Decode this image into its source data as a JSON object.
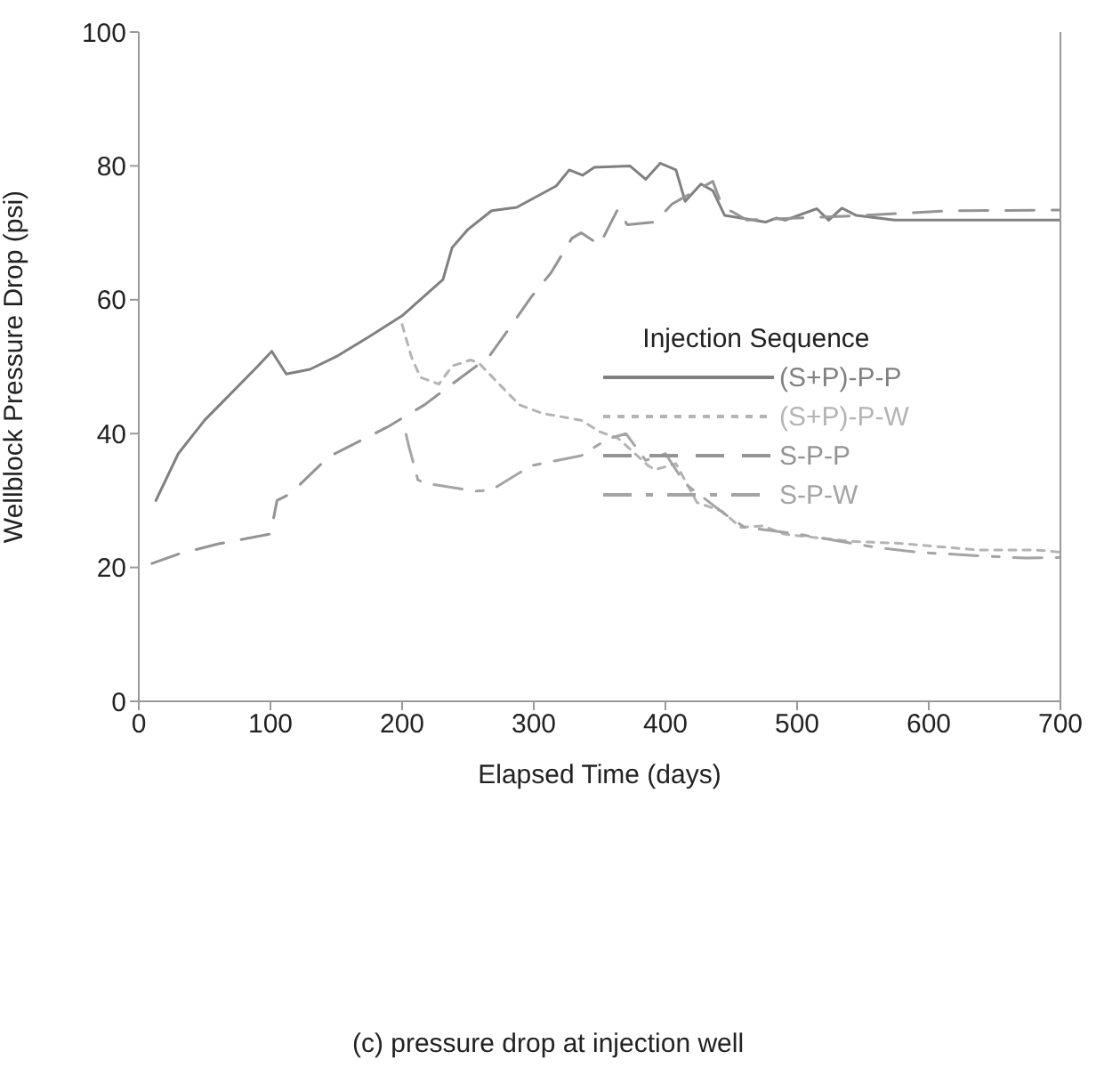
{
  "chart_data": {
    "type": "line",
    "xlabel": "Elapsed Time (days)",
    "ylabel": "Wellblock Pressure Drop (psi)",
    "legend_title": "Injection Sequence",
    "legend": "right",
    "grid": false,
    "marker": "none",
    "xlim": [
      0,
      700
    ],
    "xticks": [
      0,
      100,
      200,
      300,
      400,
      500,
      600,
      700
    ],
    "ylim": [
      0,
      100
    ],
    "yticks": [
      0,
      20,
      40,
      60,
      80,
      100
    ],
    "annotations": [
      "(c) pressure drop at injection well"
    ],
    "series": [
      {
        "name": "(S+P)-P-P",
        "color": "#808080",
        "line_style": "solid",
        "x": [
          13,
          30,
          50,
          70,
          90,
          101,
          112,
          130,
          150,
          175,
          200,
          231,
          238,
          250,
          268,
          287,
          317,
          327,
          337,
          346,
          373,
          385,
          396,
          408,
          415,
          427,
          436,
          445,
          476,
          484,
          491,
          515,
          524,
          534,
          545,
          574,
          620,
          700
        ],
        "values": [
          30,
          37,
          42,
          46,
          50,
          52.3,
          48.9,
          49.6,
          51.5,
          54.5,
          57.6,
          63,
          67.8,
          70.5,
          73.3,
          73.8,
          77,
          79.4,
          78.6,
          79.8,
          80,
          78,
          80.4,
          79.4,
          74.7,
          77.3,
          76.3,
          72.6,
          71.6,
          72.2,
          71.9,
          73.6,
          71.9,
          73.7,
          72.6,
          71.9,
          71.9,
          71.9
        ]
      },
      {
        "name": "(S+P)-P-W",
        "color": "#b4b4b4",
        "line_style": "dotted",
        "x": [
          200,
          207,
          214,
          228,
          238,
          252,
          258,
          289,
          307,
          336,
          350,
          364,
          387,
          392,
          408,
          424,
          443,
          457,
          474,
          490,
          498,
          541,
          578,
          620,
          638,
          681,
          700
        ],
        "values": [
          56.3,
          51.5,
          48.4,
          47.4,
          50.1,
          51,
          50.6,
          44.3,
          43,
          42,
          40.3,
          39.3,
          35.2,
          34.6,
          35.5,
          29.7,
          28.4,
          26,
          26.2,
          25,
          24.8,
          23.9,
          23.6,
          22.9,
          22.6,
          22.6,
          22.3
        ]
      },
      {
        "name": "S-P-P",
        "color": "#949494",
        "line_style": "dashed",
        "x": [
          10,
          30,
          60,
          100,
          105,
          115,
          144,
          189,
          217,
          238,
          266,
          281,
          298,
          313,
          329,
          336,
          350,
          364,
          371,
          392,
          405,
          436,
          443,
          462,
          550,
          616,
          700
        ],
        "values": [
          20.6,
          22,
          23.5,
          25,
          30,
          31,
          36.5,
          41,
          44.3,
          47.4,
          51.5,
          55.6,
          60.4,
          64,
          69.2,
          70,
          68.2,
          73.6,
          71.2,
          71.6,
          74.3,
          77.7,
          74,
          71.9,
          72.6,
          73.3,
          73.4
        ]
      },
      {
        "name": "S-P-W",
        "color": "#a4a4a4",
        "line_style": "dashdot",
        "x": [
          203,
          205,
          212,
          217,
          256,
          268,
          298,
          336,
          356,
          370,
          385,
          400,
          415,
          425,
          445,
          460,
          500,
          560,
          590,
          632,
          674,
          700
        ],
        "values": [
          39.9,
          38.2,
          33.1,
          32.6,
          31.4,
          31.6,
          35.2,
          36.7,
          39.2,
          40,
          36,
          37,
          32.5,
          31,
          28,
          26,
          25,
          23,
          22.3,
          21.8,
          21.4,
          21.5
        ]
      }
    ]
  }
}
